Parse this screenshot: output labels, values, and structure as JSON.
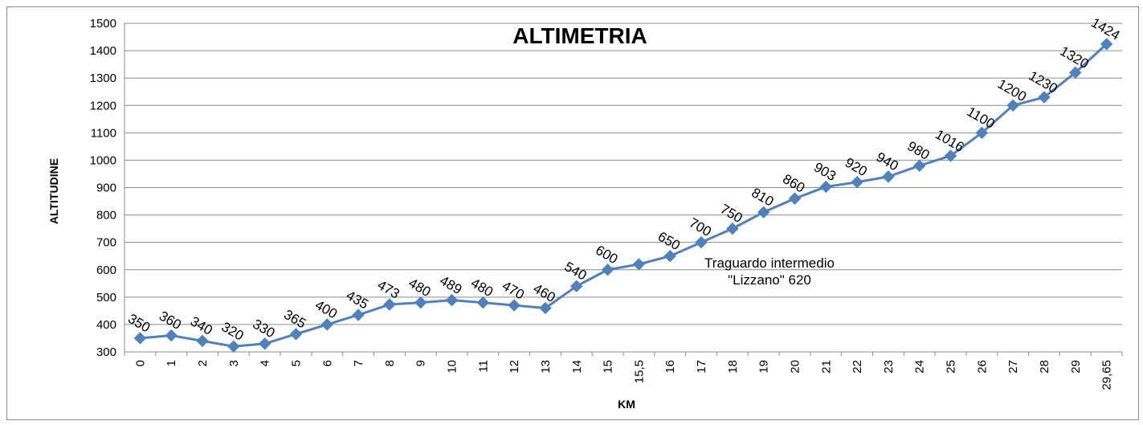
{
  "chart_data": {
    "type": "line",
    "title": "ALTIMETRIA",
    "xlabel": "KM",
    "ylabel": "ALTITUDINE",
    "ylim": [
      300,
      1500
    ],
    "y_ticks": [
      "300",
      "400",
      "500",
      "600",
      "700",
      "800",
      "900",
      "1000",
      "1100",
      "1200",
      "1300",
      "1400",
      "1500"
    ],
    "grid": true,
    "legend": "none",
    "categories": [
      "0",
      "1",
      "2",
      "3",
      "4",
      "5",
      "6",
      "7",
      "8",
      "9",
      "10",
      "11",
      "12",
      "13",
      "14",
      "15",
      "15,5",
      "16",
      "17",
      "18",
      "19",
      "20",
      "21",
      "22",
      "23",
      "24",
      "25",
      "26",
      "27",
      "28",
      "29",
      "29,65"
    ],
    "values": [
      350,
      360,
      340,
      320,
      330,
      365,
      400,
      435,
      473,
      480,
      489,
      480,
      470,
      460,
      540,
      600,
      620,
      650,
      700,
      750,
      810,
      860,
      903,
      920,
      940,
      980,
      1016,
      1100,
      1200,
      1230,
      1320,
      1424
    ],
    "data_labels": [
      "350",
      "360",
      "340",
      "320",
      "330",
      "365",
      "400",
      "435",
      "473",
      "480",
      "489",
      "480",
      "470",
      "460",
      "540",
      "600",
      "",
      "650",
      "700",
      "750",
      "810",
      "860",
      "903",
      "920",
      "940",
      "980",
      "1016",
      "1100",
      "1200",
      "1230",
      "1320",
      "1424"
    ],
    "annotation": {
      "line1": "Traguardo intermedio",
      "line2": "\"Lizzano\" 620"
    },
    "colors": {
      "series": "#4f81bd",
      "grid": "#8c8c8c",
      "frame": "#8c8c8c"
    }
  }
}
